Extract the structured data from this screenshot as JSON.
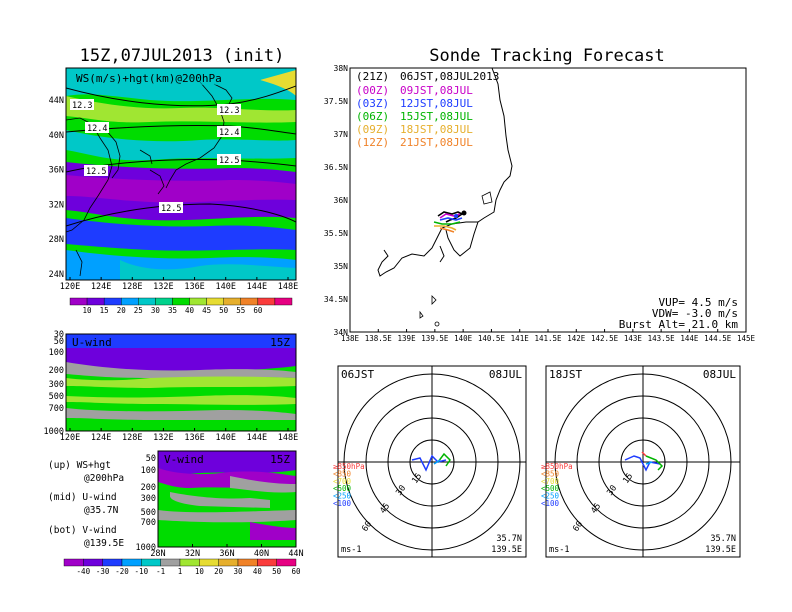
{
  "left_title": "15Z,07JUL2013 (init)",
  "right_title": "Sonde Tracking Forecast",
  "colors": {
    "land": "#000000",
    "frame": "#000000"
  },
  "top_map": {
    "label": "WS(m/s)+hgt(km)@200hPa",
    "x_ticks": [
      "120E",
      "124E",
      "128E",
      "132E",
      "136E",
      "140E",
      "144E",
      "148E"
    ],
    "y_ticks": [
      "44N",
      "40N",
      "36N",
      "32N",
      "28N",
      "24N"
    ],
    "contour_labels": [
      "12.3",
      "12.3",
      "12.4",
      "12.4",
      "12.5",
      "12.5",
      "12.5"
    ],
    "colorbar_ticks": [
      "10",
      "15",
      "20",
      "25",
      "30",
      "35",
      "40",
      "45",
      "50",
      "55",
      "60"
    ],
    "colorbar_colors": [
      "#a000c8",
      "#6e00dc",
      "#1e3cff",
      "#00a0ff",
      "#00c8c8",
      "#00d28c",
      "#00dc00",
      "#a0e632",
      "#e6dc32",
      "#e6af2d",
      "#f08228",
      "#fa3c3c",
      "#e60082"
    ]
  },
  "u_wind": {
    "label": "U-wind",
    "time": "15Z",
    "y_ticks": [
      "30",
      "50",
      "100",
      "200",
      "300",
      "500",
      "700",
      "1000"
    ],
    "x_ticks": [
      "120E",
      "124E",
      "128E",
      "132E",
      "136E",
      "140E",
      "144E",
      "148E"
    ]
  },
  "v_wind": {
    "label": "V-wind",
    "time": "15Z",
    "y_ticks": [
      "50",
      "100",
      "200",
      "300",
      "500",
      "700",
      "1000"
    ],
    "x_ticks": [
      "28N",
      "32N",
      "36N",
      "40N",
      "44N"
    ]
  },
  "legend_text": {
    "up1": "(up) WS+hgt",
    "up2": "@200hPa",
    "mid1": "(mid) U-wind",
    "mid2": "@35.7N",
    "bot1": "(bot) V-wind",
    "bot2": "@139.5E"
  },
  "wind_colorbar": {
    "ticks": [
      "-40",
      "-30",
      "-20",
      "-10",
      "-1",
      "1",
      "10",
      "20",
      "30",
      "40",
      "50",
      "60"
    ],
    "colors": [
      "#a000c8",
      "#6e00dc",
      "#1e3cff",
      "#00a0ff",
      "#00c8c8",
      "#a0a0a0",
      "#a0e632",
      "#e6dc32",
      "#e6af2d",
      "#f08228",
      "#fa3c3c",
      "#e60082"
    ]
  },
  "track_map": {
    "x_ticks": [
      "138E",
      "138.5E",
      "139E",
      "139.5E",
      "140E",
      "140.5E",
      "141E",
      "141.5E",
      "142E",
      "142.5E",
      "143E",
      "143.5E",
      "144E",
      "144.5E",
      "145E"
    ],
    "y_ticks": [
      "38N",
      "37.5N",
      "37N",
      "36.5N",
      "36N",
      "35.5N",
      "35N",
      "34.5N",
      "34N"
    ],
    "launches": [
      {
        "cycle": "(21Z)",
        "time": "06JST,08JUL2013",
        "color": "#000000"
      },
      {
        "cycle": "(00Z)",
        "time": "09JST,08JUL",
        "color": "#c800c8"
      },
      {
        "cycle": "(03Z)",
        "time": "12JST,08JUL",
        "color": "#1e3cff"
      },
      {
        "cycle": "(06Z)",
        "time": "15JST,08JUL",
        "color": "#00b400"
      },
      {
        "cycle": "(09Z)",
        "time": "18JST,08JUL",
        "color": "#e6af2d"
      },
      {
        "cycle": "(12Z)",
        "time": "21JST,08JUL",
        "color": "#f08228"
      }
    ],
    "info": [
      "VUP= 4.5 m/s",
      "VDW= -3.0 m/s",
      "Burst Alt= 21.0 km"
    ]
  },
  "hodo_left": {
    "time": "06JST",
    "date": "08JUL",
    "lat": "35.7N",
    "lon": "139.5E",
    "unit": "ms-1",
    "rings": [
      "15",
      "30",
      "45",
      "60"
    ]
  },
  "hodo_right": {
    "time": "18JST",
    "date": "08JUL",
    "lat": "35.7N",
    "lon": "139.5E",
    "unit": "ms-1",
    "rings": [
      "15",
      "30",
      "45",
      "60"
    ]
  },
  "hodo_legend": [
    {
      "label": "≥850hPa",
      "color": "#fa3c3c"
    },
    {
      "label": "<850",
      "color": "#f08228"
    },
    {
      "label": "<700",
      "color": "#e6dc32"
    },
    {
      "label": "<500",
      "color": "#00b400"
    },
    {
      "label": "<250",
      "color": "#00a0ff"
    },
    {
      "label": "<100",
      "color": "#1e3cff"
    }
  ],
  "chart_data": [
    {
      "type": "heatmap",
      "title": "15Z,07JUL2013 (init)",
      "label": "WS(m/s)+hgt(km)@200hPa",
      "xlim": [
        "120E",
        "148E"
      ],
      "ylim": [
        "22N",
        "48N"
      ],
      "contours_km": [
        12.3,
        12.4,
        12.5
      ]
    },
    {
      "type": "heatmap",
      "label": "U-wind",
      "time": "15Z",
      "xlim": [
        "120E",
        "148E"
      ],
      "ylim_hPa": [
        1000,
        30
      ]
    },
    {
      "type": "heatmap",
      "label": "V-wind",
      "time": "15Z",
      "xlim": [
        "28N",
        "44N"
      ],
      "ylim_hPa": [
        1000,
        50
      ]
    },
    {
      "type": "line",
      "title": "Sonde Tracking Forecast",
      "xlim": [
        "138E",
        "145E"
      ],
      "ylim": [
        "34N",
        "38N"
      ]
    }
  ]
}
